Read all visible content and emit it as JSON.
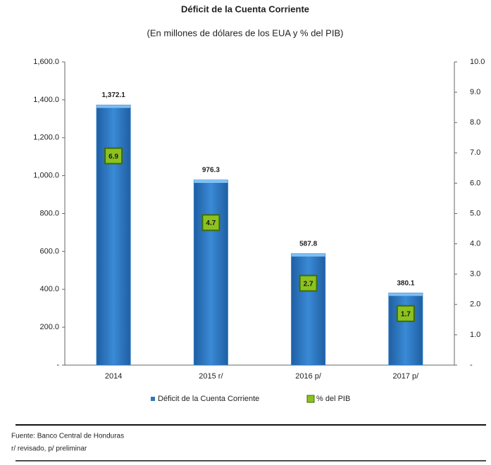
{
  "chart_data": {
    "type": "bar",
    "title": "Déficit de la Cuenta Corriente",
    "subtitle": "(En millones de dólares de los EUA y % del PIB)",
    "categories": [
      "2014",
      "2015 r/",
      "2016 p/",
      "2017 p/"
    ],
    "series": [
      {
        "name": "Déficit de la Cuenta Corriente",
        "color": "#2a78c2",
        "values": [
          1372.1,
          976.3,
          587.8,
          380.1
        ],
        "value_labels": [
          "1,372.1",
          "976.3",
          "587.8",
          "380.1"
        ]
      },
      {
        "name": "% del PIB",
        "color": "#8cc21f",
        "axis": "y2",
        "values": [
          6.9,
          4.7,
          2.7,
          1.7
        ]
      }
    ],
    "ylim": [
      0,
      1600
    ],
    "yticks": [
      {
        "value": 0,
        "label": "-"
      },
      {
        "value": 200,
        "label": "200.0"
      },
      {
        "value": 400,
        "label": "400.0"
      },
      {
        "value": 600,
        "label": "600.0"
      },
      {
        "value": 800,
        "label": "800.0"
      },
      {
        "value": 1000,
        "label": "1,000.0"
      },
      {
        "value": 1200,
        "label": "1,200.0"
      },
      {
        "value": 1400,
        "label": "1,400.0"
      },
      {
        "value": 1600,
        "label": "1,600.0"
      }
    ],
    "y2lim": [
      0,
      10
    ],
    "y2ticks": [
      {
        "value": 0,
        "label": "-"
      },
      {
        "value": 1,
        "label": "1.0"
      },
      {
        "value": 2,
        "label": "2.0"
      },
      {
        "value": 3,
        "label": "3.0"
      },
      {
        "value": 4,
        "label": "4.0"
      },
      {
        "value": 5,
        "label": "5.0"
      },
      {
        "value": 6,
        "label": "6.0"
      },
      {
        "value": 7,
        "label": "7.0"
      },
      {
        "value": 8,
        "label": "8.0"
      },
      {
        "value": 9,
        "label": "9.0"
      },
      {
        "value": 10,
        "label": "10.0"
      }
    ],
    "legend": "bottom"
  },
  "footer": {
    "source": "Fuente: Banco Central de Honduras",
    "note": "r/ revisado, p/ preliminar"
  }
}
